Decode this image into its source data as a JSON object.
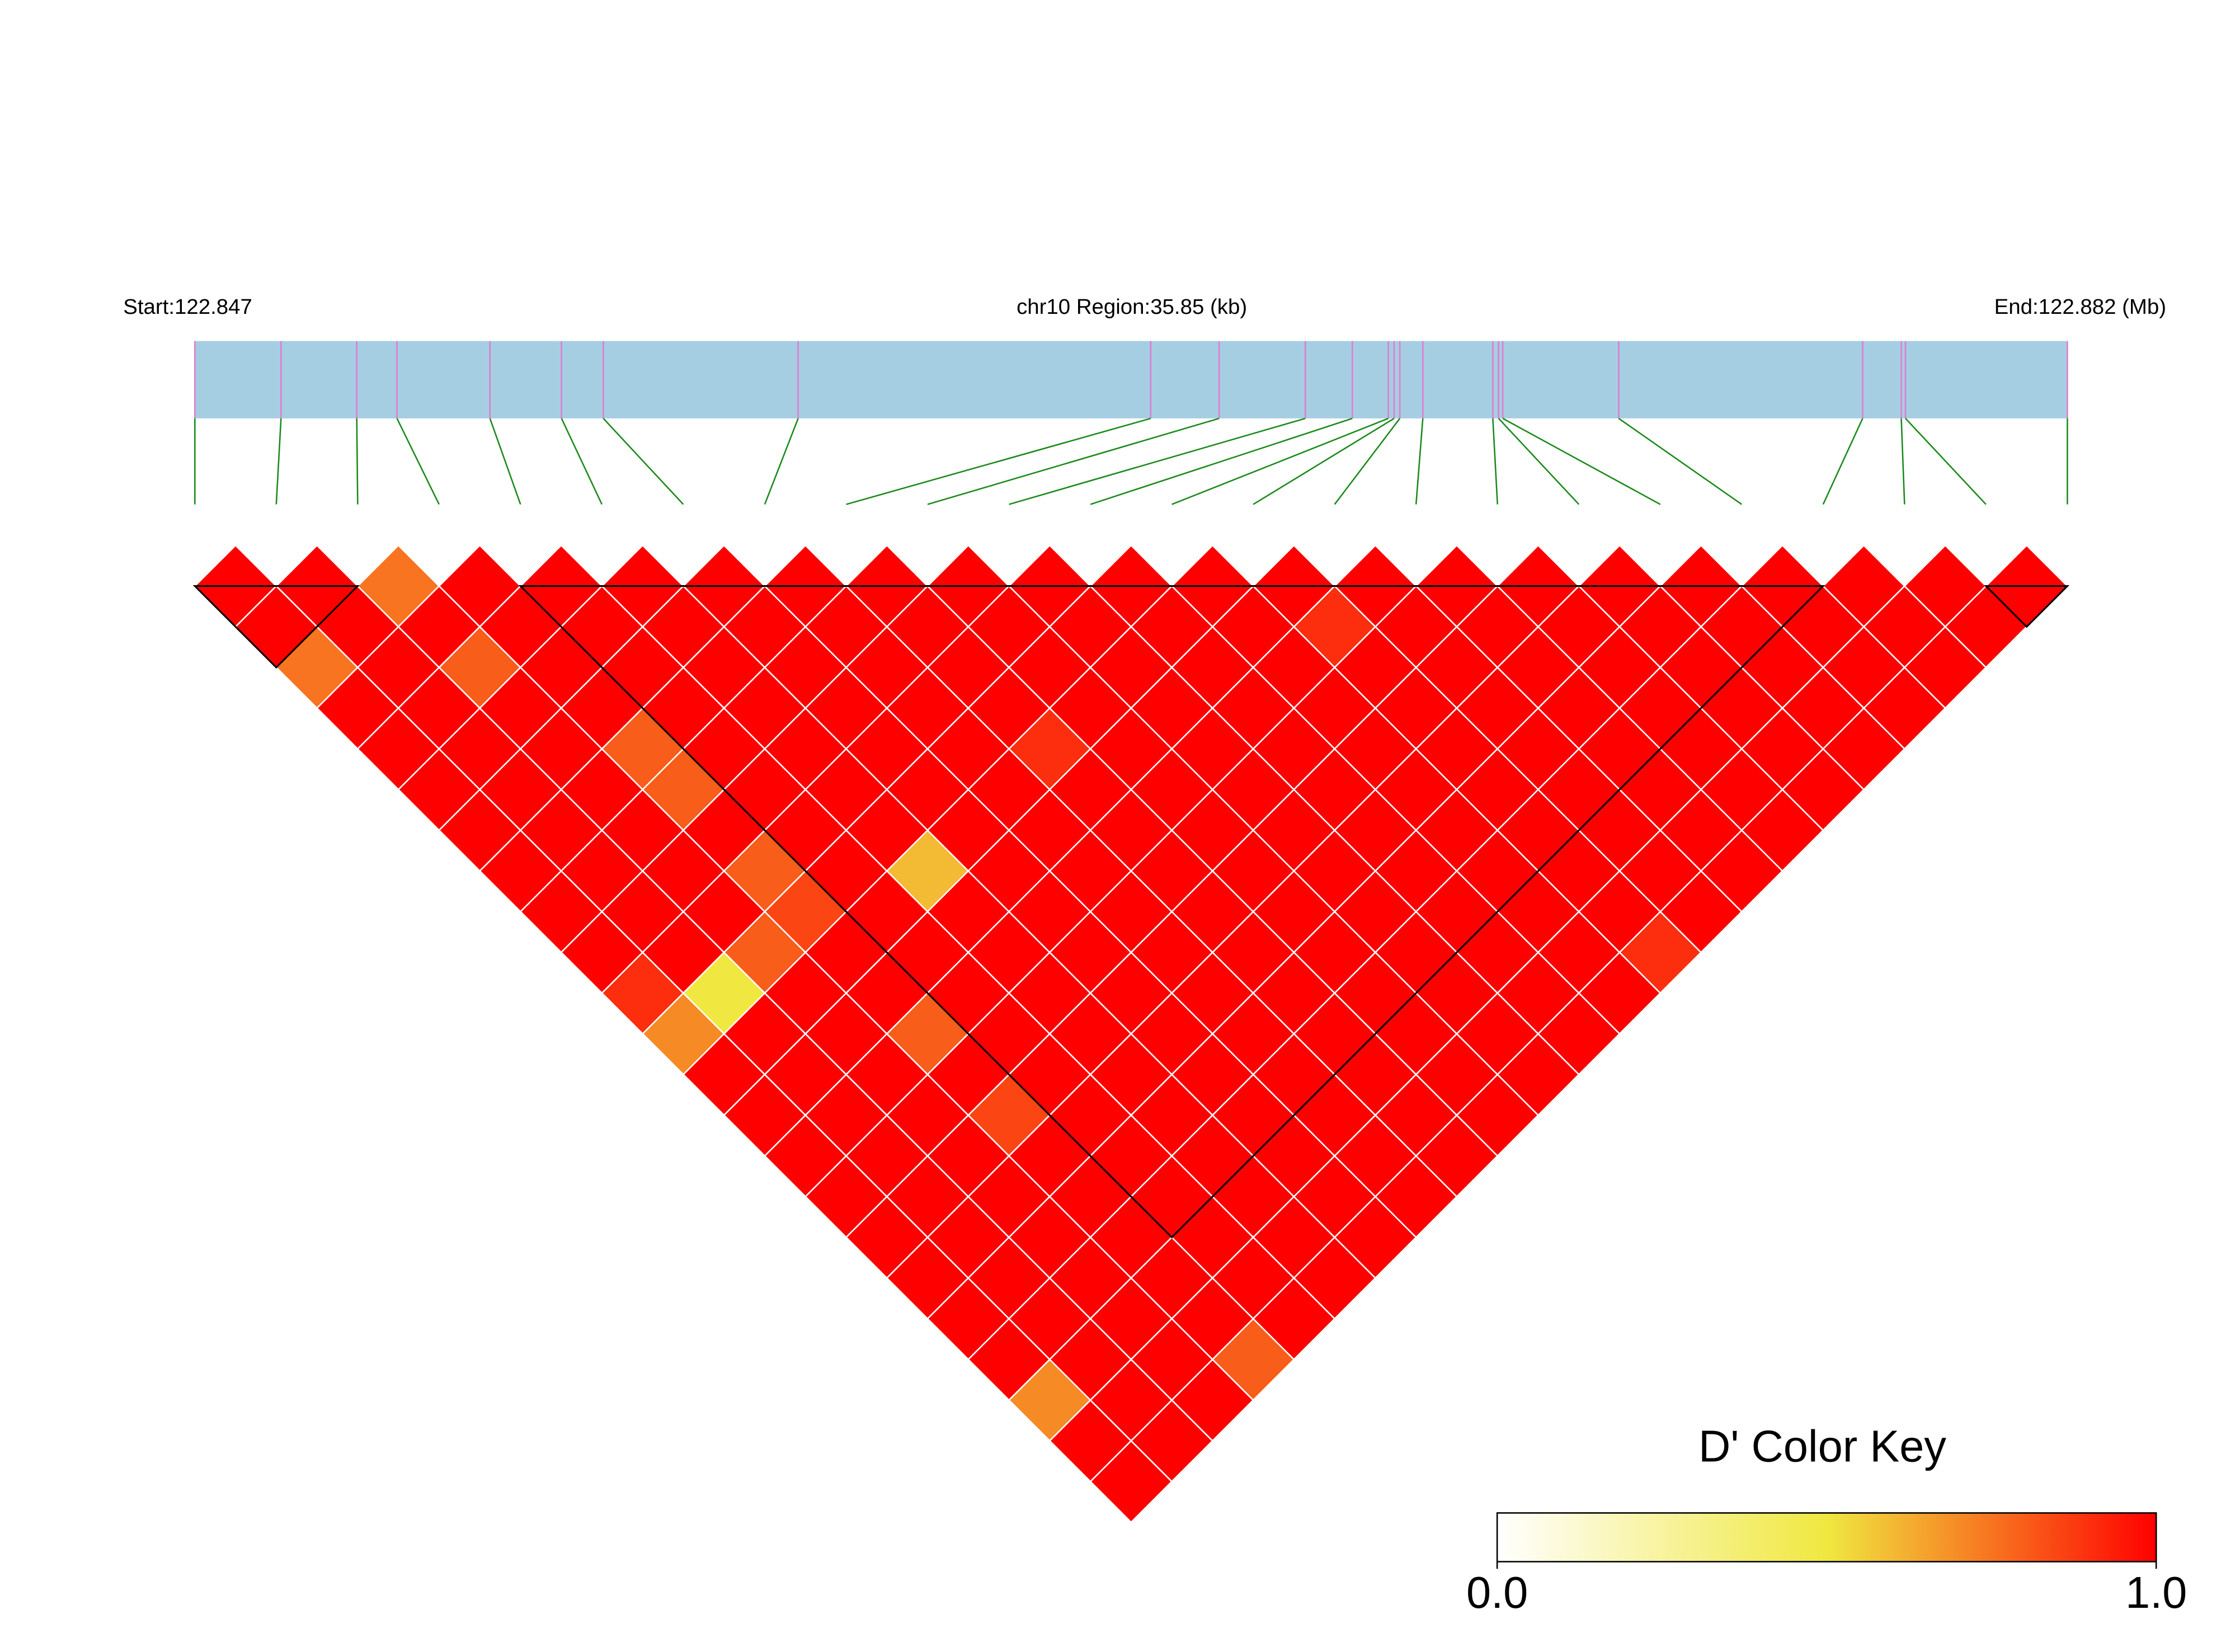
{
  "chart_data": {
    "type": "ld_heatmap",
    "start_label": "Start:122.847",
    "region_label": "chr10 Region:35.85 (kb)",
    "end_label": "End:122.882 (Mb)",
    "key_title": "D' Color Key",
    "snp_positions_kb": [
      0,
      1.65,
      3.1,
      3.87,
      5.65,
      7.02,
      7.82,
      11.55,
      18.3,
      19.61,
      21.26,
      22.16,
      22.85,
      22.96,
      23.07,
      23.51,
      24.85,
      24.96,
      25.04,
      27.26,
      31.93,
      32.67,
      32.75,
      35.85
    ],
    "d_prime": [
      [
        1,
        1,
        0.75,
        1,
        1,
        1,
        1,
        1,
        1,
        1,
        0.9,
        0.7,
        1,
        1,
        1,
        1,
        1,
        1,
        1,
        1,
        0.7,
        1,
        1
      ],
      [
        1,
        1,
        1,
        1,
        1,
        1,
        1,
        1,
        1,
        1,
        0.5,
        1,
        1,
        1,
        1,
        1,
        1,
        1,
        1,
        1,
        1,
        1
      ],
      [
        0.75,
        1,
        0.8,
        1,
        1,
        1,
        1,
        1,
        1,
        0.8,
        1,
        1,
        1,
        1,
        1,
        1,
        1,
        1,
        1,
        1,
        1
      ],
      [
        1,
        1,
        1,
        1,
        0.8,
        0.8,
        1,
        0.8,
        0.85,
        1,
        1,
        0.8,
        1,
        0.85,
        1,
        1,
        1,
        1,
        1,
        0.8
      ],
      [
        1,
        1,
        1,
        1,
        1,
        1,
        1,
        1,
        1,
        1,
        1,
        1,
        1,
        1,
        1,
        1,
        1,
        1,
        1
      ],
      [
        1,
        1,
        1,
        1,
        1,
        1,
        1,
        0.6,
        1,
        1,
        1,
        1,
        1,
        1,
        1,
        1,
        1,
        1
      ],
      [
        1,
        1,
        1,
        1,
        1,
        1,
        1,
        1,
        1,
        1,
        1,
        1,
        1,
        1,
        1,
        1,
        1
      ],
      [
        1,
        1,
        1,
        1,
        1,
        1,
        1,
        1,
        1,
        1,
        1,
        1,
        1,
        1,
        1,
        1
      ],
      [
        1,
        1,
        1,
        1,
        0.9,
        1,
        1,
        1,
        1,
        1,
        1,
        1,
        1,
        1,
        1
      ],
      [
        1,
        1,
        1,
        1,
        1,
        1,
        1,
        1,
        1,
        1,
        1,
        1,
        1,
        1
      ],
      [
        1,
        1,
        1,
        1,
        1,
        1,
        1,
        1,
        1,
        1,
        1,
        1,
        1
      ],
      [
        1,
        1,
        1,
        1,
        1,
        1,
        1,
        1,
        1,
        1,
        1,
        1
      ],
      [
        1,
        1,
        1,
        1,
        1,
        1,
        1,
        1,
        1,
        1,
        1
      ],
      [
        1,
        0.9,
        1,
        1,
        1,
        1,
        1,
        1,
        1,
        0.9
      ],
      [
        1,
        1,
        1,
        1,
        1,
        1,
        1,
        1,
        1
      ],
      [
        1,
        1,
        1,
        1,
        1,
        1,
        1,
        1
      ],
      [
        1,
        1,
        1,
        1,
        1,
        1,
        1
      ],
      [
        1,
        1,
        1,
        1,
        1,
        1
      ],
      [
        1,
        1,
        1,
        1,
        1
      ],
      [
        1,
        1,
        1,
        1
      ],
      [
        1,
        1,
        1
      ],
      [
        1,
        1
      ],
      [
        1
      ]
    ],
    "blocks": [
      [
        0,
        2
      ],
      [
        4,
        20
      ],
      [
        22,
        23
      ]
    ],
    "color_scale": [
      "#ffffff",
      "#f0e840",
      "#ff0000"
    ],
    "key_xlim": [
      0,
      1
    ],
    "key_ticks": [
      {
        "value": 0,
        "label": "0.0"
      },
      {
        "value": 1,
        "label": "1.0"
      }
    ]
  }
}
